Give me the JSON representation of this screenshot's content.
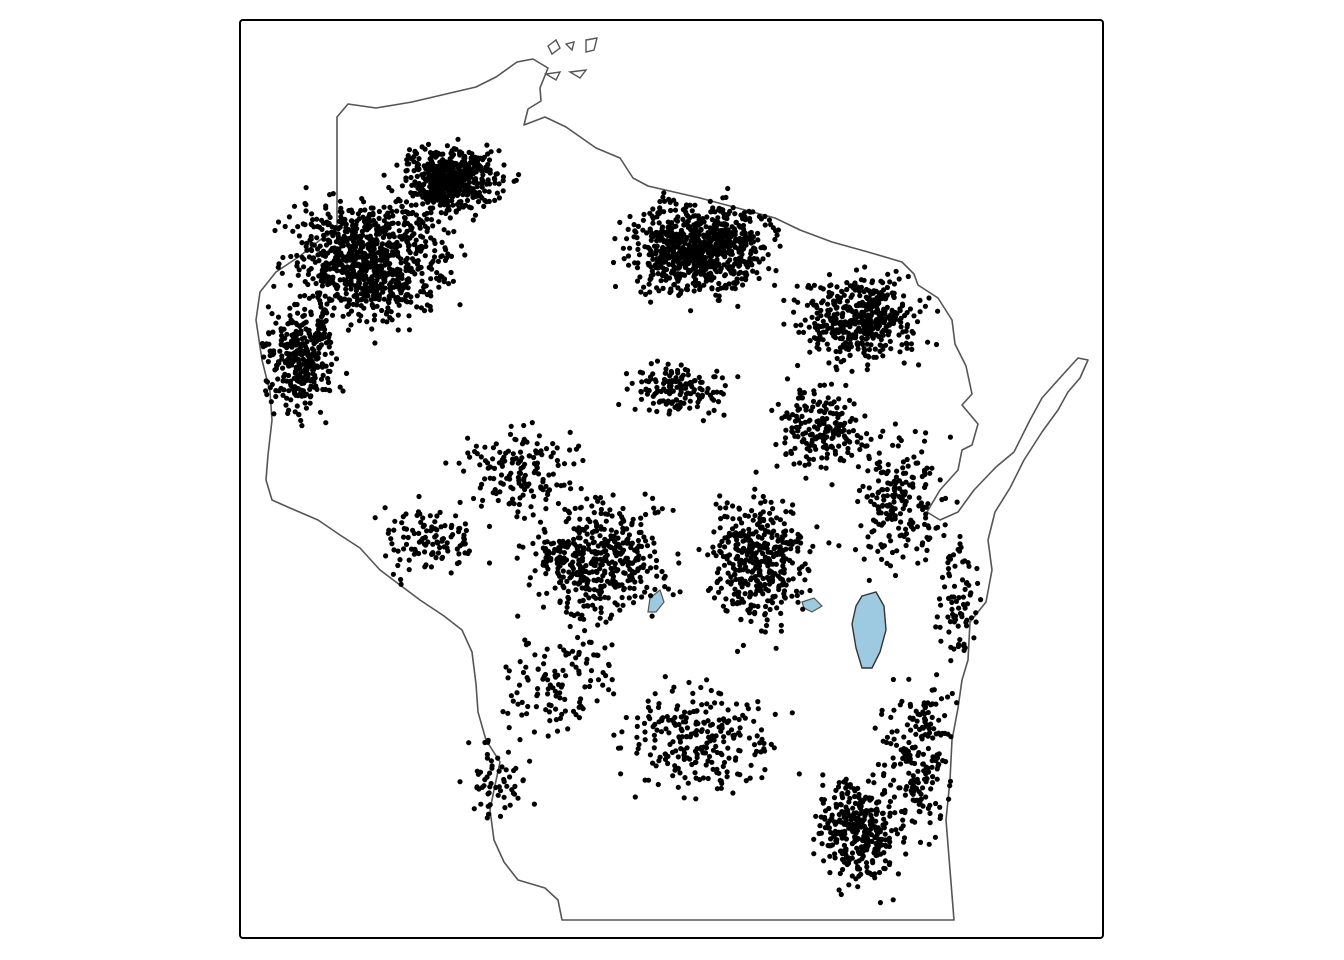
{
  "map": {
    "region": "Wisconsin",
    "colors": {
      "background": "#ffffff",
      "frame": "#000000",
      "outline": "#555555",
      "lake_fill": "#9ecae1",
      "point": "#000000"
    },
    "layers": [
      "state-outline",
      "lakes",
      "points"
    ],
    "point_density": {
      "clusters": [
        {
          "name": "northwest",
          "weight": 0.26
        },
        {
          "name": "north-central",
          "weight": 0.2
        },
        {
          "name": "northeast",
          "weight": 0.1
        },
        {
          "name": "central",
          "weight": 0.18
        },
        {
          "name": "southeast",
          "weight": 0.12
        },
        {
          "name": "southwest",
          "weight": 0.07
        },
        {
          "name": "east-coast",
          "weight": 0.07
        }
      ]
    }
  }
}
